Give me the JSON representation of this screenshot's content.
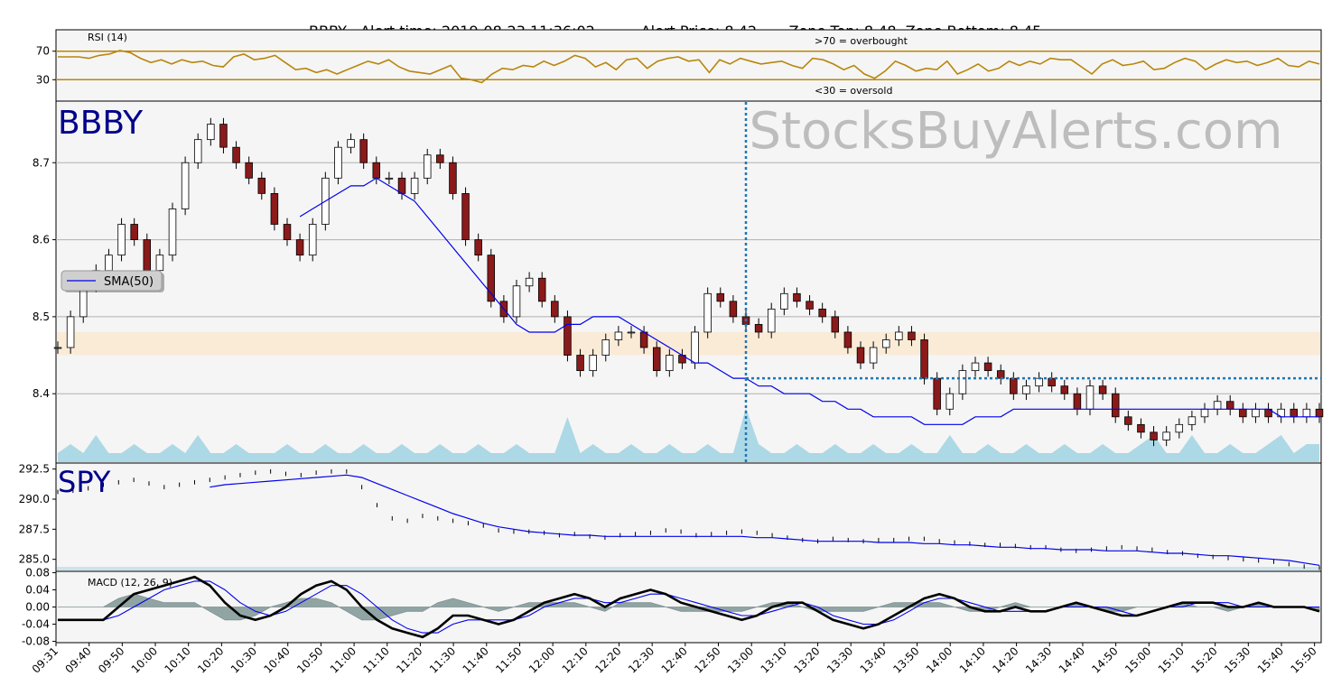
{
  "header": {
    "ticker": "BBBY",
    "alert_time": "Alert time: 2019-08-23 11:36:02",
    "alert_price": "Alert Price: 8.42",
    "zone_top": "Zone Top: 8.48",
    "zone_bottom": "Zone Bottom: 8.45"
  },
  "watermark": "StocksBuyAlerts.com",
  "colors": {
    "panel_bg": "#f5f5f5",
    "rsi_line": "#b8860b",
    "sma_line": "#0000ee",
    "volume": "#add8e6",
    "alert_line": "#1f77b4",
    "zone_fill": "#faebd7",
    "candle_up": "#ffffff",
    "candle_down": "#8b1a1a",
    "macd_line": "#000000",
    "signal_line": "#0000ee",
    "histogram": "#708a8a",
    "ticker_label": "#00008b"
  },
  "chart_data": [
    {
      "id": "rsi",
      "type": "line",
      "title": "RSI (14)",
      "yticks": [
        "70",
        "30"
      ],
      "ylim": [
        0,
        100
      ],
      "levels": [
        70,
        30
      ],
      "level_labels": [
        ">70 = overbought",
        "<30 = oversold"
      ],
      "values": [
        62,
        62,
        62,
        60,
        64,
        66,
        71,
        68,
        60,
        54,
        58,
        52,
        58,
        54,
        56,
        50,
        48,
        62,
        66,
        58,
        60,
        64,
        54,
        44,
        46,
        40,
        44,
        38,
        44,
        50,
        56,
        52,
        58,
        48,
        42,
        40,
        38,
        44,
        50,
        32,
        30,
        26,
        38,
        46,
        44,
        50,
        48,
        56,
        50,
        56,
        64,
        60,
        48,
        54,
        44,
        58,
        60,
        46,
        56,
        60,
        62,
        56,
        58,
        40,
        58,
        52,
        60,
        56,
        52,
        54,
        56,
        50,
        46,
        60,
        58,
        52,
        44,
        50,
        38,
        32,
        42,
        56,
        50,
        42,
        46,
        44,
        56,
        38,
        44,
        52,
        42,
        46,
        56,
        50,
        56,
        52,
        60,
        58,
        58,
        48,
        38,
        52,
        58,
        50,
        52,
        56,
        44,
        46,
        54,
        60,
        56,
        44,
        52,
        58,
        54,
        56,
        50,
        54,
        60,
        50,
        48,
        56,
        52
      ],
      "grid": false
    },
    {
      "id": "bbby",
      "type": "line",
      "title": "BBBY",
      "yticks": [
        "8.4",
        "8.5",
        "8.6",
        "8.7"
      ],
      "ylim": [
        8.31,
        8.78
      ],
      "zone": {
        "top": 8.48,
        "bottom": 8.45
      },
      "alert": {
        "time_index": 54,
        "price": 8.42
      },
      "series": [
        {
          "name": "price",
          "values": [
            8.46,
            8.5,
            8.54,
            8.56,
            8.58,
            8.62,
            8.6,
            8.56,
            8.58,
            8.64,
            8.7,
            8.73,
            8.75,
            8.72,
            8.7,
            8.68,
            8.66,
            8.62,
            8.6,
            8.58,
            8.62,
            8.68,
            8.72,
            8.73,
            8.7,
            8.68,
            8.68,
            8.66,
            8.68,
            8.71,
            8.7,
            8.66,
            8.6,
            8.58,
            8.52,
            8.5,
            8.54,
            8.55,
            8.52,
            8.5,
            8.45,
            8.43,
            8.45,
            8.47,
            8.48,
            8.48,
            8.46,
            8.43,
            8.45,
            8.44,
            8.48,
            8.53,
            8.52,
            8.5,
            8.49,
            8.48,
            8.51,
            8.53,
            8.52,
            8.51,
            8.5,
            8.48,
            8.46,
            8.44,
            8.46,
            8.47,
            8.48,
            8.47,
            8.42,
            8.38,
            8.4,
            8.43,
            8.44,
            8.43,
            8.42,
            8.4,
            8.41,
            8.42,
            8.41,
            8.4,
            8.38,
            8.41,
            8.4,
            8.37,
            8.36,
            8.35,
            8.34,
            8.35,
            8.36,
            8.37,
            8.38,
            8.39,
            8.38,
            8.37,
            8.38,
            8.37,
            8.38,
            8.37,
            8.38,
            8.37
          ]
        },
        {
          "name": "SMA(50)",
          "values": [
            null,
            null,
            null,
            null,
            null,
            null,
            null,
            null,
            null,
            null,
            null,
            null,
            null,
            null,
            null,
            null,
            null,
            null,
            null,
            8.63,
            8.64,
            8.65,
            8.66,
            8.67,
            8.67,
            8.68,
            8.67,
            8.66,
            8.65,
            8.63,
            8.61,
            8.59,
            8.57,
            8.55,
            8.53,
            8.51,
            8.49,
            8.48,
            8.48,
            8.48,
            8.49,
            8.49,
            8.5,
            8.5,
            8.5,
            8.49,
            8.48,
            8.47,
            8.46,
            8.45,
            8.44,
            8.44,
            8.43,
            8.42,
            8.42,
            8.41,
            8.41,
            8.4,
            8.4,
            8.4,
            8.39,
            8.39,
            8.38,
            8.38,
            8.37,
            8.37,
            8.37,
            8.37,
            8.36,
            8.36,
            8.36,
            8.36,
            8.37,
            8.37,
            8.37,
            8.38,
            8.38,
            8.38,
            8.38,
            8.38,
            8.38,
            8.38,
            8.38,
            8.38,
            8.38,
            8.38,
            8.38,
            8.38,
            8.38,
            8.38,
            8.38,
            8.38,
            8.38,
            8.38,
            8.38,
            8.38,
            8.37,
            8.37,
            8.37,
            8.37
          ]
        },
        {
          "name": "volume",
          "values": [
            1,
            2,
            1,
            3,
            1,
            1,
            2,
            1,
            1,
            2,
            1,
            3,
            1,
            1,
            2,
            1,
            1,
            1,
            2,
            1,
            1,
            2,
            1,
            1,
            2,
            1,
            1,
            2,
            1,
            1,
            2,
            1,
            1,
            2,
            1,
            1,
            2,
            1,
            1,
            1,
            5,
            1,
            2,
            1,
            1,
            2,
            1,
            1,
            2,
            1,
            1,
            2,
            1,
            1,
            6,
            2,
            1,
            1,
            2,
            1,
            1,
            2,
            1,
            1,
            2,
            1,
            1,
            2,
            1,
            1,
            3,
            1,
            1,
            2,
            1,
            1,
            2,
            1,
            1,
            2,
            1,
            1,
            2,
            1,
            1,
            2,
            3,
            1,
            1,
            3,
            1,
            1,
            2,
            1,
            1,
            2,
            3,
            1,
            2,
            2
          ]
        }
      ],
      "legend": [
        "SMA(50)"
      ],
      "legend_loc": "center-left",
      "grid": true
    },
    {
      "id": "spy",
      "type": "line",
      "title": "SPY",
      "yticks": [
        "292.5",
        "290.0",
        "287.5",
        "285.0"
      ],
      "ylim": [
        284.0,
        293.0
      ],
      "series": [
        {
          "name": "price",
          "values": [
            290.6,
            290.7,
            290.9,
            291.2,
            291.4,
            291.6,
            291.3,
            291.0,
            291.2,
            291.4,
            291.6,
            291.8,
            292.0,
            292.2,
            292.3,
            292.1,
            292.0,
            292.2,
            292.3,
            292.3,
            291.0,
            289.5,
            288.4,
            288.2,
            288.6,
            288.4,
            288.2,
            288.0,
            287.8,
            287.4,
            287.3,
            287.3,
            287.2,
            287.0,
            287.1,
            286.9,
            286.8,
            287.0,
            287.1,
            287.2,
            287.4,
            287.3,
            287.0,
            287.1,
            287.2,
            287.3,
            287.2,
            287.0,
            286.8,
            286.6,
            286.5,
            286.7,
            286.6,
            286.5,
            286.6,
            286.6,
            286.7,
            286.7,
            286.5,
            286.4,
            286.3,
            286.2,
            286.2,
            286.1,
            286.0,
            286.0,
            285.8,
            285.7,
            285.8,
            285.9,
            286.0,
            285.9,
            285.8,
            285.6,
            285.5,
            285.3,
            285.2,
            285.1,
            285.0,
            284.9,
            284.8,
            284.6,
            284.4,
            284.3
          ]
        },
        {
          "name": "SMA(50)",
          "values": [
            null,
            null,
            null,
            null,
            null,
            null,
            null,
            null,
            null,
            null,
            291.0,
            291.2,
            291.3,
            291.4,
            291.5,
            291.6,
            291.7,
            291.8,
            291.9,
            292.0,
            291.8,
            291.3,
            290.8,
            290.3,
            289.8,
            289.3,
            288.8,
            288.4,
            288.0,
            287.7,
            287.5,
            287.3,
            287.2,
            287.1,
            287.0,
            287.0,
            286.9,
            286.9,
            286.9,
            286.9,
            286.9,
            286.9,
            286.9,
            286.9,
            286.9,
            286.9,
            286.8,
            286.8,
            286.7,
            286.6,
            286.5,
            286.5,
            286.5,
            286.5,
            286.4,
            286.4,
            286.4,
            286.3,
            286.3,
            286.2,
            286.2,
            286.1,
            286.0,
            286.0,
            285.9,
            285.9,
            285.8,
            285.8,
            285.8,
            285.7,
            285.7,
            285.7,
            285.6,
            285.5,
            285.5,
            285.4,
            285.3,
            285.3,
            285.2,
            285.1,
            285.0,
            284.9,
            284.7,
            284.5
          ]
        }
      ],
      "grid": false
    },
    {
      "id": "macd",
      "type": "line",
      "title": "MACD (12, 26, 9)",
      "yticks": [
        "0.08",
        "0.04",
        "0.00",
        "-0.04",
        "-0.08"
      ],
      "ylim": [
        -0.083,
        0.083
      ],
      "series": [
        {
          "name": "macd",
          "values": [
            -0.03,
            -0.03,
            -0.03,
            -0.03,
            0.0,
            0.03,
            0.04,
            0.05,
            0.06,
            0.07,
            0.05,
            0.01,
            -0.02,
            -0.03,
            -0.02,
            0.0,
            0.03,
            0.05,
            0.06,
            0.04,
            0.0,
            -0.03,
            -0.05,
            -0.06,
            -0.07,
            -0.05,
            -0.02,
            -0.02,
            -0.03,
            -0.04,
            -0.03,
            -0.01,
            0.01,
            0.02,
            0.03,
            0.02,
            0.0,
            0.02,
            0.03,
            0.04,
            0.03,
            0.01,
            0.0,
            -0.01,
            -0.02,
            -0.03,
            -0.02,
            0.0,
            0.01,
            0.01,
            -0.01,
            -0.03,
            -0.04,
            -0.05,
            -0.04,
            -0.02,
            0.0,
            0.02,
            0.03,
            0.02,
            0.0,
            -0.01,
            -0.01,
            0.0,
            -0.01,
            -0.01,
            0.0,
            0.01,
            0.0,
            -0.01,
            -0.02,
            -0.02,
            -0.01,
            0.0,
            0.01,
            0.01,
            0.01,
            0.0,
            0.0,
            0.01,
            0.0,
            0.0,
            0.0,
            -0.01
          ]
        },
        {
          "name": "signal",
          "values": [
            -0.03,
            -0.03,
            -0.03,
            -0.03,
            -0.02,
            0.0,
            0.02,
            0.04,
            0.05,
            0.06,
            0.06,
            0.04,
            0.01,
            -0.01,
            -0.02,
            -0.01,
            0.01,
            0.03,
            0.05,
            0.05,
            0.03,
            0.0,
            -0.03,
            -0.05,
            -0.06,
            -0.06,
            -0.04,
            -0.03,
            -0.03,
            -0.03,
            -0.03,
            -0.02,
            0.0,
            0.01,
            0.02,
            0.02,
            0.01,
            0.01,
            0.02,
            0.03,
            0.03,
            0.02,
            0.01,
            0.0,
            -0.01,
            -0.02,
            -0.02,
            -0.01,
            0.0,
            0.01,
            0.0,
            -0.02,
            -0.03,
            -0.04,
            -0.04,
            -0.03,
            -0.01,
            0.01,
            0.02,
            0.02,
            0.01,
            0.0,
            -0.01,
            -0.01,
            -0.01,
            -0.01,
            0.0,
            0.0,
            0.0,
            0.0,
            -0.01,
            -0.02,
            -0.01,
            0.0,
            0.0,
            0.01,
            0.01,
            0.01,
            0.0,
            0.0,
            0.0,
            0.0,
            0.0,
            0.0
          ]
        }
      ],
      "grid": false
    }
  ],
  "time_axis": [
    "09:31",
    "09:40",
    "09:50",
    "10:00",
    "10:10",
    "10:20",
    "10:30",
    "10:40",
    "10:50",
    "11:00",
    "11:10",
    "11:20",
    "11:30",
    "11:40",
    "11:50",
    "12:00",
    "12:10",
    "12:20",
    "12:30",
    "12:40",
    "12:50",
    "13:00",
    "13:10",
    "13:20",
    "13:30",
    "13:40",
    "13:50",
    "14:00",
    "14:10",
    "14:20",
    "14:30",
    "14:40",
    "14:50",
    "15:00",
    "15:10",
    "15:20",
    "15:30",
    "15:40",
    "15:50"
  ]
}
